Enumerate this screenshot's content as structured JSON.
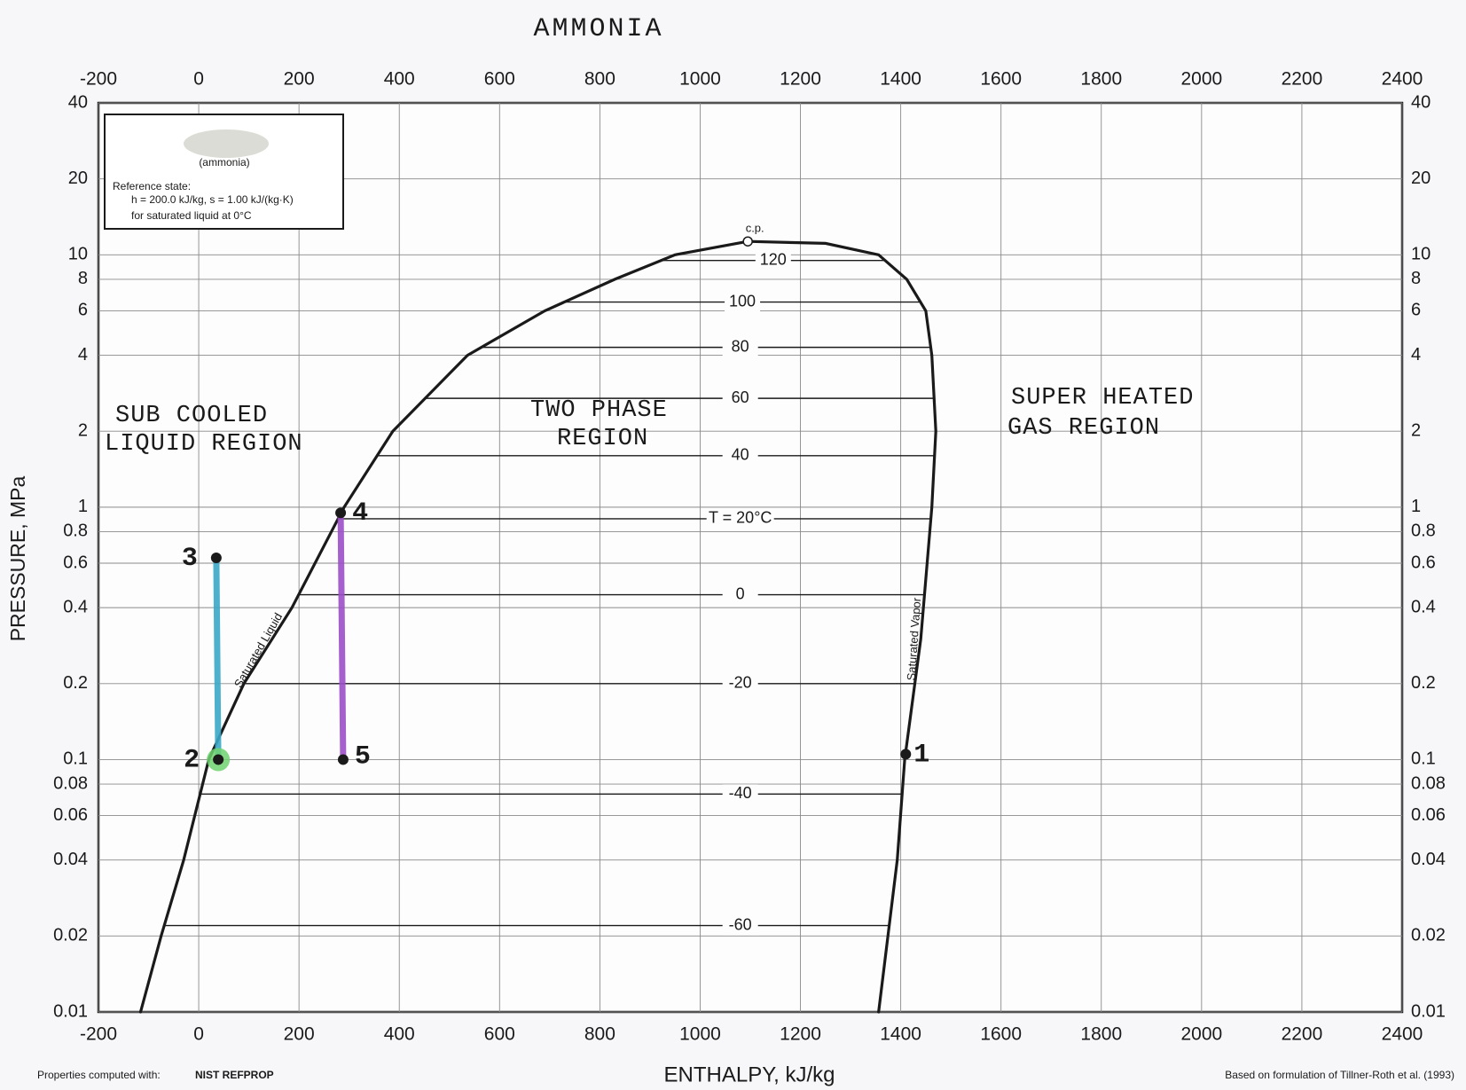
{
  "chart_data": {
    "type": "line",
    "title": "AMMONIA",
    "xlabel": "ENTHALPY, kJ/kg",
    "ylabel": "PRESSURE, MPa",
    "xlim": [
      -200,
      2400
    ],
    "xticks": [
      -200,
      0,
      200,
      400,
      600,
      800,
      1000,
      1200,
      1400,
      1600,
      1800,
      2000,
      2200,
      2400
    ],
    "ylim": [
      0.01,
      40
    ],
    "yticks": [
      0.01,
      0.02,
      0.04,
      0.06,
      0.08,
      0.1,
      0.2,
      0.4,
      0.6,
      0.8,
      1,
      2,
      4,
      6,
      8,
      10,
      20,
      40
    ],
    "log_y": true,
    "grid": true,
    "series": [
      {
        "name": "Saturated Liquid",
        "color": "#1a1a1a",
        "x": [
          -116,
          -75,
          -30,
          20,
          90,
          186,
          290,
          387,
          536,
          690,
          830,
          950,
          1095
        ],
        "values": [
          0.01,
          0.02,
          0.04,
          0.1,
          0.2,
          0.4,
          1,
          2,
          4,
          6,
          8,
          10,
          11.3
        ]
      },
      {
        "name": "Saturated Vapor",
        "color": "#1a1a1a",
        "x": [
          1356,
          1393,
          1408,
          1440,
          1462,
          1470,
          1462,
          1450,
          1412,
          1356,
          1250,
          1095
        ],
        "values": [
          0.01,
          0.04,
          0.1,
          0.3,
          1,
          2,
          4,
          6,
          8,
          10,
          11.1,
          11.3
        ]
      },
      {
        "color": "#3aa8c8",
        "x": [
          35,
          39
        ],
        "values": [
          0.63,
          0.1
        ]
      },
      {
        "color": "#9b4fc9",
        "x": [
          283,
          288
        ],
        "values": [
          0.95,
          0.1
        ]
      }
    ],
    "isotherms": [
      {
        "label": "120",
        "p": 9.5
      },
      {
        "label": "100",
        "p": 6.5
      },
      {
        "label": "80",
        "p": 4.3
      },
      {
        "label": "60",
        "p": 2.7
      },
      {
        "label": "40",
        "p": 1.6
      },
      {
        "label": "T = 20°C",
        "p": 0.9
      },
      {
        "label": "0",
        "p": 0.45
      },
      {
        "label": "-20",
        "p": 0.2
      },
      {
        "label": "-40",
        "p": 0.073
      },
      {
        "label": "-60",
        "p": 0.022
      }
    ],
    "points": [
      {
        "label": "1",
        "x": 1410,
        "y": 0.105
      },
      {
        "label": "2",
        "x": 39,
        "y": 0.1,
        "highlight": "#6fd46f"
      },
      {
        "label": "3",
        "x": 35,
        "y": 0.63
      },
      {
        "label": "4",
        "x": 283,
        "y": 0.95
      },
      {
        "label": "5",
        "x": 288,
        "y": 0.1
      }
    ],
    "critical_point": {
      "label": "c.p.",
      "x": 1095,
      "y": 11.3
    },
    "annotations": [
      "SUB COOLED",
      "LIQUID REGION",
      "TWO PHASE",
      "REGION",
      "SUPER HEATED",
      "GAS REGION"
    ],
    "reference_box": [
      "(ammonia)",
      "Reference state:",
      "h = 200.0 kJ/kg,   s = 1.00 kJ/(kg·K)",
      "for saturated liquid at 0°C"
    ],
    "footer_left": [
      "Properties computed with:",
      "NIST REFPROP"
    ],
    "footer_right": "Based on formulation of Tillner-Roth et al. (1993)"
  }
}
